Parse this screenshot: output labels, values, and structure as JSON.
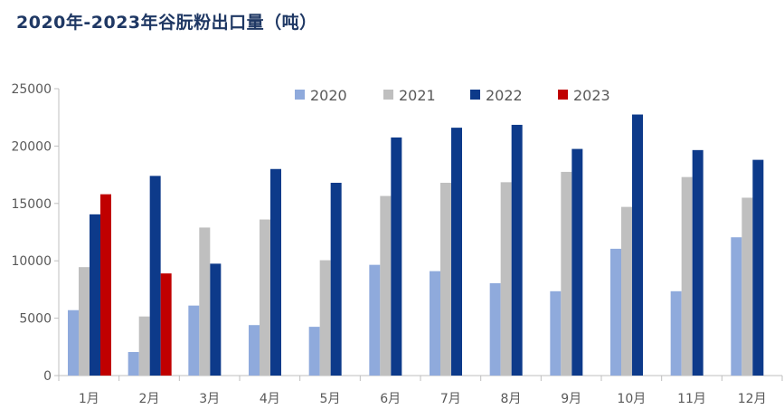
{
  "title": "2020年-2023年谷朊粉出口量（吨）",
  "chart_data": {
    "type": "bar",
    "title": "2020年-2023年谷朊粉出口量（吨）",
    "xlabel": "",
    "ylabel": "",
    "ylim": [
      0,
      25000
    ],
    "yticks": [
      0,
      5000,
      10000,
      15000,
      20000,
      25000
    ],
    "grid": false,
    "legend_position": "top-center",
    "categories": [
      "1月",
      "2月",
      "3月",
      "4月",
      "5月",
      "6月",
      "7月",
      "8月",
      "9月",
      "10月",
      "11月",
      "12月"
    ],
    "series": [
      {
        "name": "2020",
        "color": "#8faadc",
        "values": [
          5700,
          2050,
          6100,
          4400,
          4250,
          9650,
          9100,
          8050,
          7350,
          11050,
          7350,
          12050
        ]
      },
      {
        "name": "2021",
        "color": "#bfbfbf",
        "values": [
          9450,
          5150,
          12900,
          13600,
          10050,
          15650,
          16800,
          16850,
          17750,
          14700,
          17300,
          15500
        ]
      },
      {
        "name": "2022",
        "color": "#0d3a8a",
        "values": [
          14050,
          17400,
          9750,
          18000,
          16800,
          20750,
          21600,
          21850,
          19750,
          22750,
          19650,
          18800
        ]
      },
      {
        "name": "2023",
        "color": "#c00000",
        "values": [
          15800,
          8900,
          null,
          null,
          null,
          null,
          null,
          null,
          null,
          null,
          null,
          null
        ]
      }
    ]
  }
}
